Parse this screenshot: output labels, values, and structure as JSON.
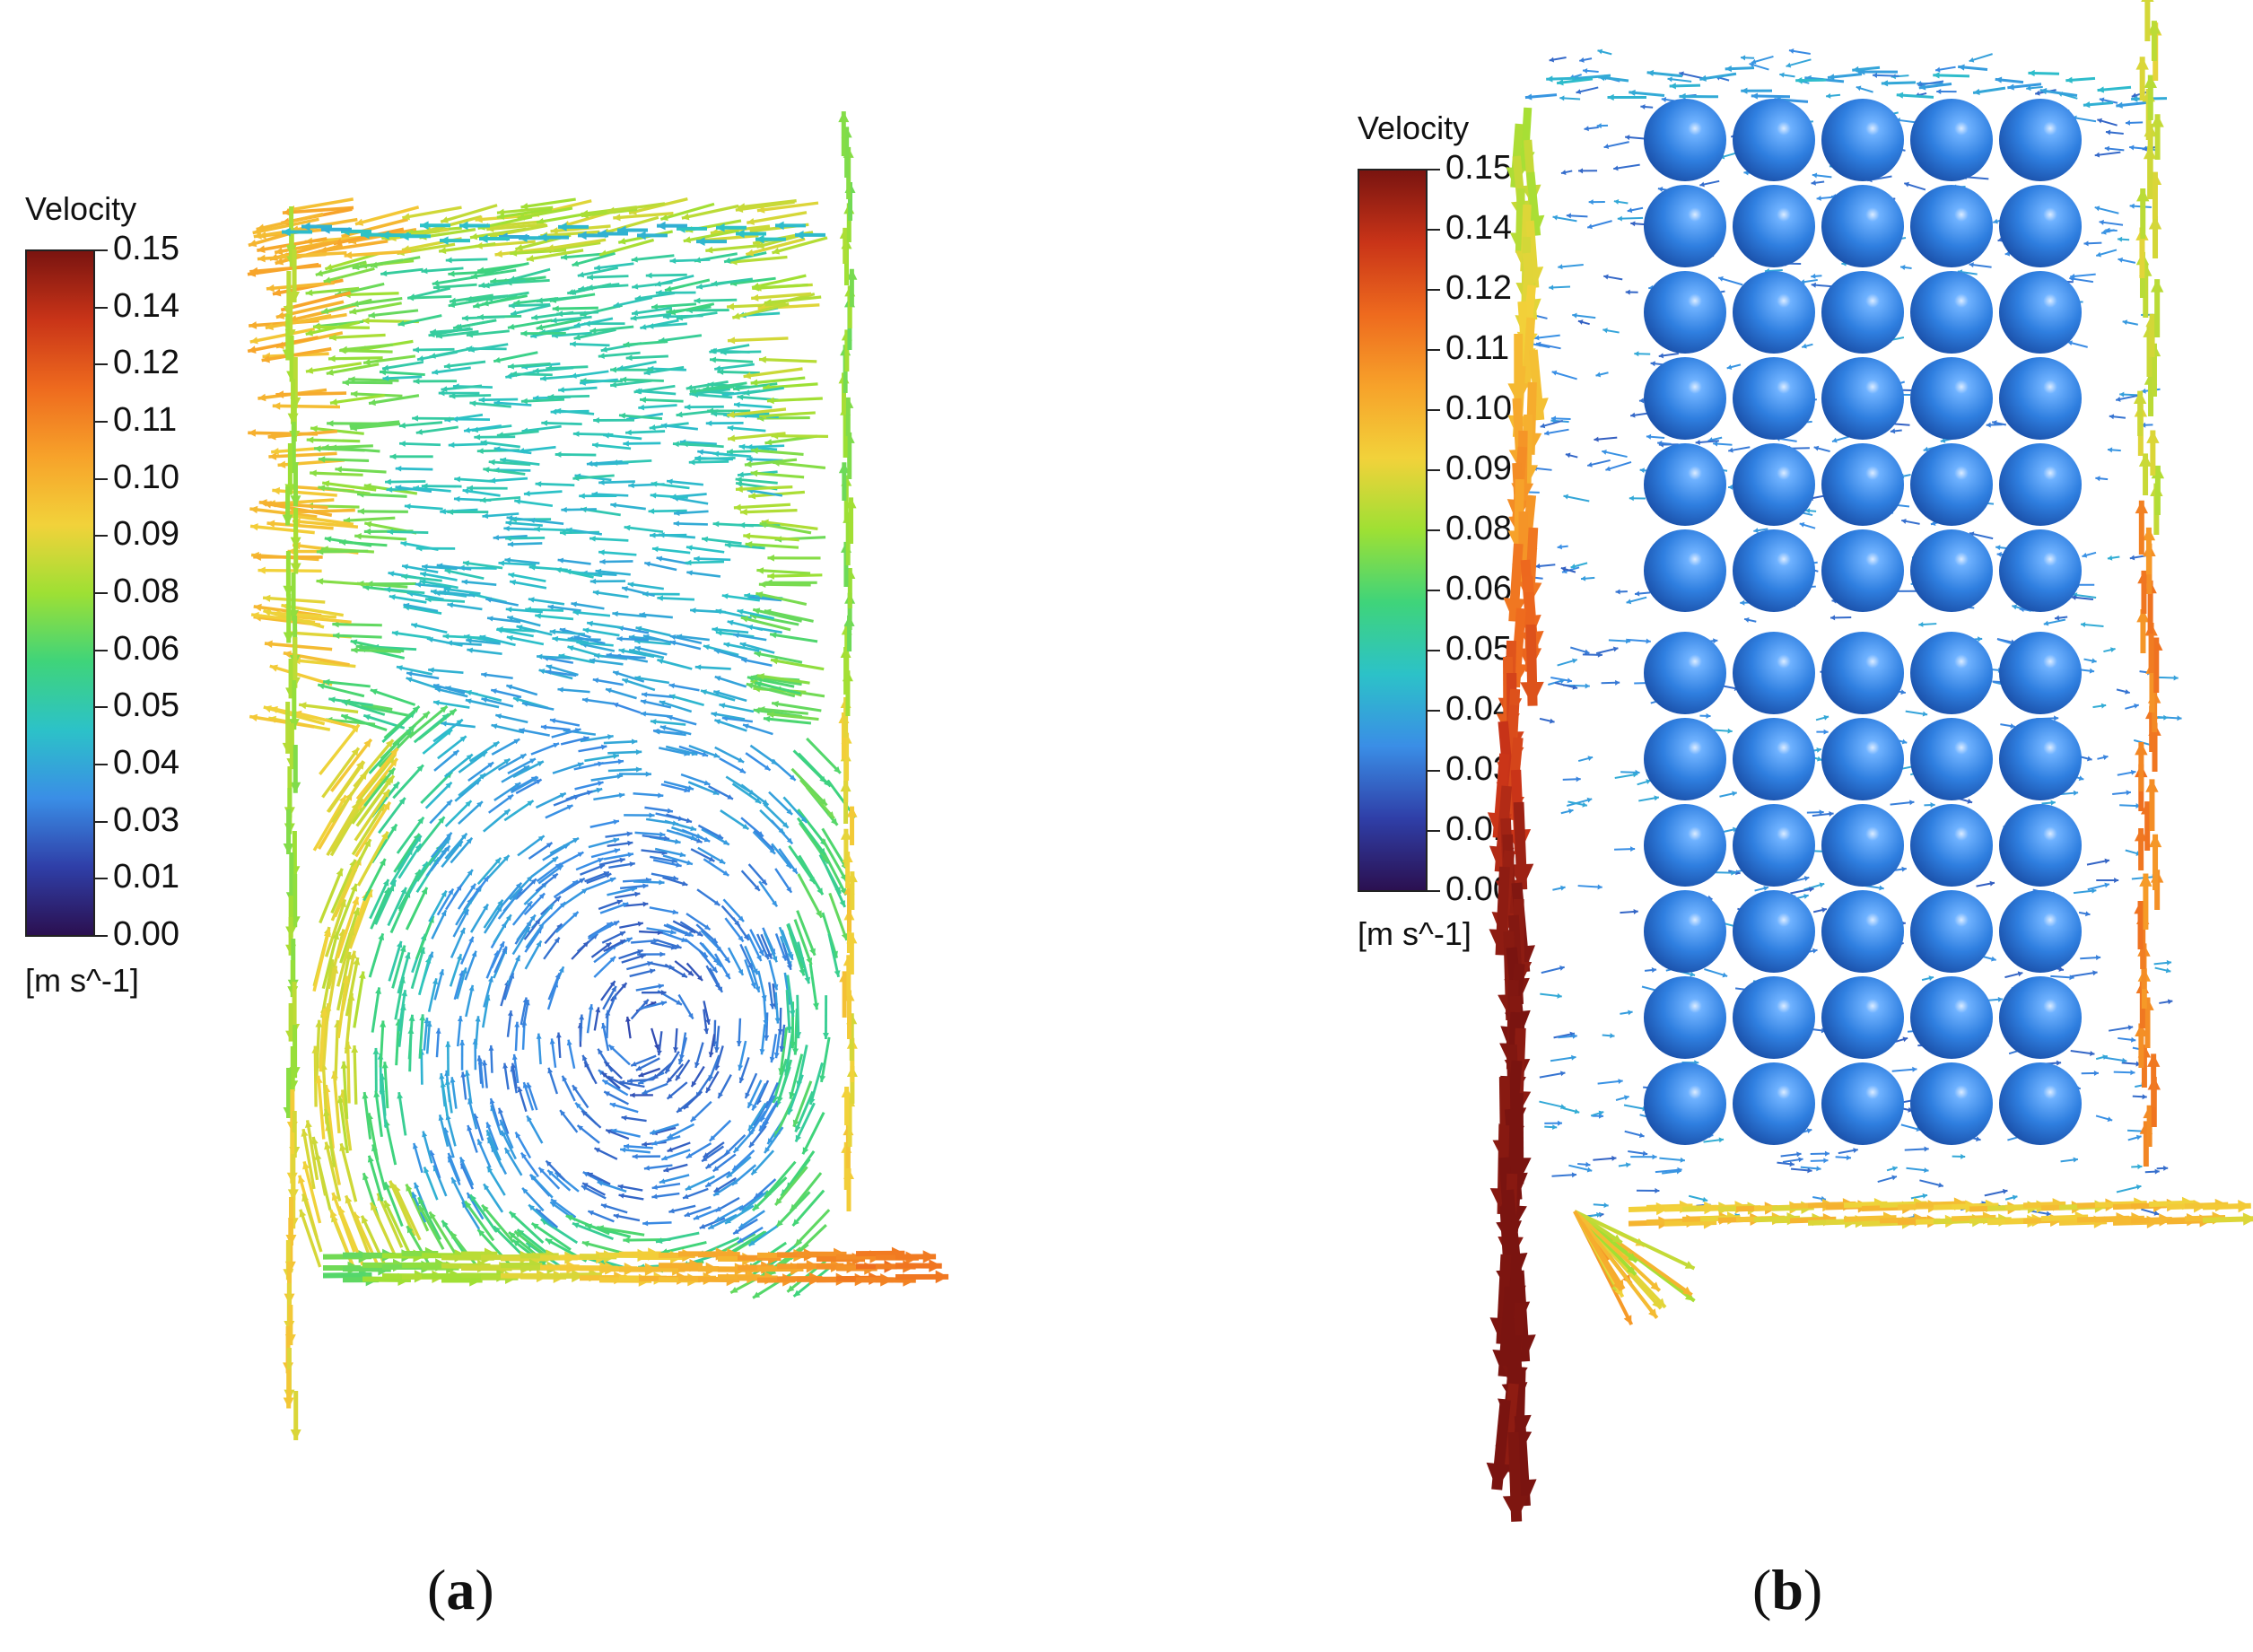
{
  "colorbar": {
    "title": "Velocity",
    "ticks": [
      "0.15",
      "0.14",
      "0.12",
      "0.11",
      "0.10",
      "0.09",
      "0.08",
      "0.06",
      "0.05",
      "0.04",
      "0.03",
      "0.01",
      "0.00"
    ],
    "units": "[m s^-1]",
    "colormap": [
      "#2b1050",
      "#2f3fa8",
      "#3a8ee6",
      "#2cc2c8",
      "#3fd47a",
      "#9ee034",
      "#f2d23a",
      "#f7a22a",
      "#ee6a1e",
      "#c93418",
      "#7a1410"
    ]
  },
  "panels": [
    {
      "id": "a",
      "caption_open": "(",
      "caption_letter": "a",
      "caption_close": ")",
      "cylinders": false
    },
    {
      "id": "b",
      "caption_open": "(",
      "caption_letter": "b",
      "caption_close": ")",
      "cylinders": true
    }
  ],
  "cylinder_color": "#2f7fe0"
}
